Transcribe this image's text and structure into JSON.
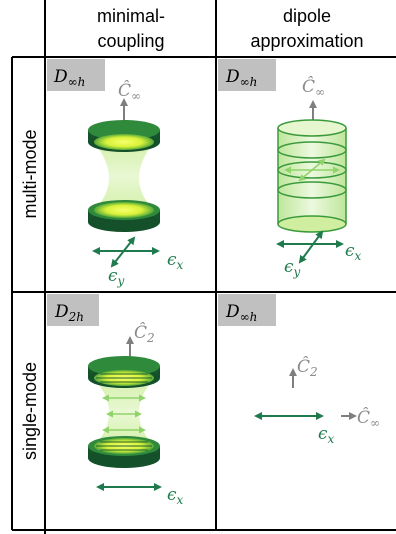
{
  "columns": [
    {
      "line1": "minimal-",
      "line2": "coupling"
    },
    {
      "line1": "dipole",
      "line2": "approximation"
    }
  ],
  "rows": [
    {
      "label": "multi-mode"
    },
    {
      "label": "single-mode"
    }
  ],
  "cells": {
    "mm_mc": {
      "group": {
        "main": "D",
        "sub": "∞h"
      },
      "axis": {
        "main": "Ĉ",
        "sub": "∞"
      },
      "pol1": {
        "main": "ϵ",
        "sub": "y"
      },
      "pol2": {
        "main": "ϵ",
        "sub": "x"
      }
    },
    "mm_da": {
      "group": {
        "main": "D",
        "sub": "∞h"
      },
      "axis": {
        "main": "Ĉ",
        "sub": "∞"
      },
      "pol1": {
        "main": "ϵ",
        "sub": "y"
      },
      "pol2": {
        "main": "ϵ",
        "sub": "x"
      }
    },
    "sm_mc": {
      "group": {
        "main": "D",
        "sub": "2h"
      },
      "axis": {
        "main": "Ĉ",
        "sub": "2"
      },
      "pol1": {
        "main": "ϵ",
        "sub": "x"
      }
    },
    "sm_da": {
      "group": {
        "main": "D",
        "sub": "∞h"
      },
      "axis1": {
        "main": "Ĉ",
        "sub": "2"
      },
      "axis2": {
        "main": "Ĉ",
        "sub": "∞"
      },
      "pol1": {
        "main": "ϵ",
        "sub": "x"
      }
    }
  },
  "colors": {
    "border": "#000000",
    "badge": "#c0c0c0",
    "arrow_green": "#1f7a4d",
    "arrow_gray": "#7f7f7f",
    "mirror_dark": "#1b5e2c",
    "mirror_mid": "#2f8a3c",
    "glow": "#eaf53c",
    "beam": "#b6e37a"
  }
}
